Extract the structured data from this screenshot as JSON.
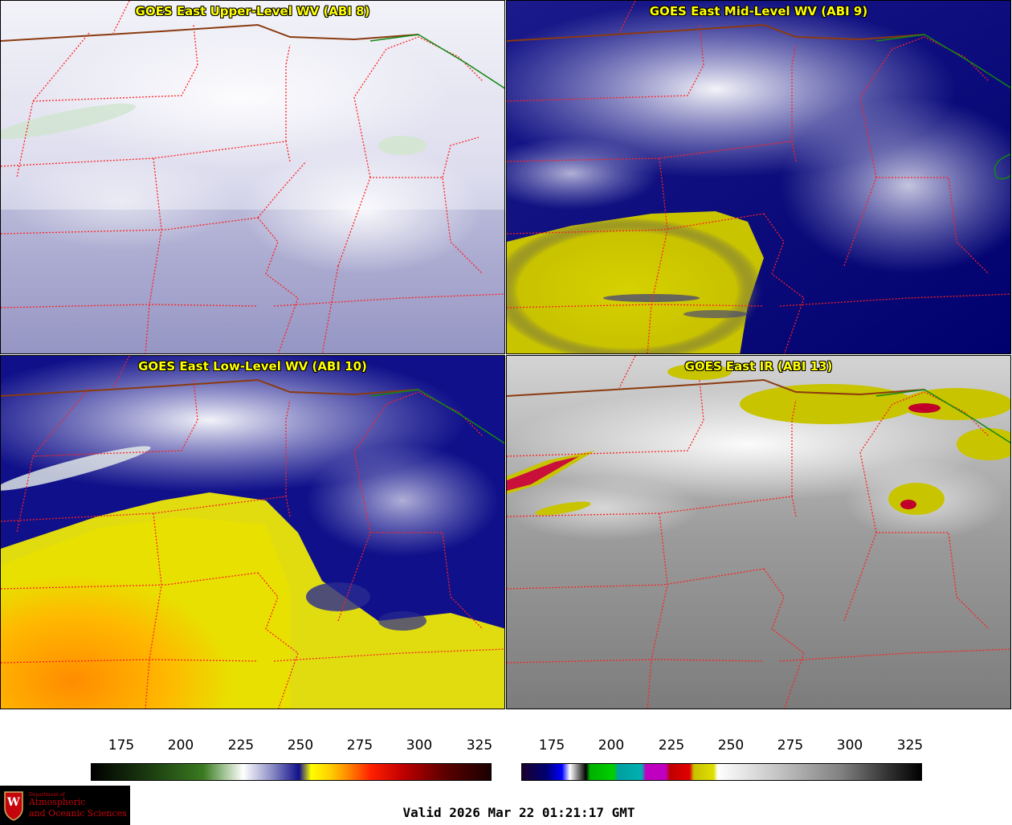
{
  "panels": [
    {
      "title": "GOES East Upper-Level WV (ABI 8)",
      "style": "wv_upper"
    },
    {
      "title": "GOES East Mid-Level WV (ABI 9)",
      "style": "wv_mid"
    },
    {
      "title": "GOES East Low-Level WV (ABI 10)",
      "style": "wv_low"
    },
    {
      "title": "GOES East IR (ABI 13)",
      "style": "ir"
    }
  ],
  "colorbars": [
    {
      "name": "wv",
      "ticks": [
        "175",
        "200",
        "225",
        "250",
        "275",
        "300",
        "325"
      ]
    },
    {
      "name": "ir",
      "ticks": [
        "175",
        "200",
        "225",
        "250",
        "275",
        "300",
        "325"
      ]
    }
  ],
  "valid_time": "Valid 2026 Mar 22 01:21:17 GMT",
  "logo": {
    "line1": "Department of",
    "line2": "Atmospheric",
    "line3": "and Oceanic Sciences",
    "letter": "W"
  },
  "colors": {
    "state_border": "#ff2020",
    "country_border": "#8b3a0f",
    "canada_line": "#118811",
    "title_text": "#ffff00"
  }
}
